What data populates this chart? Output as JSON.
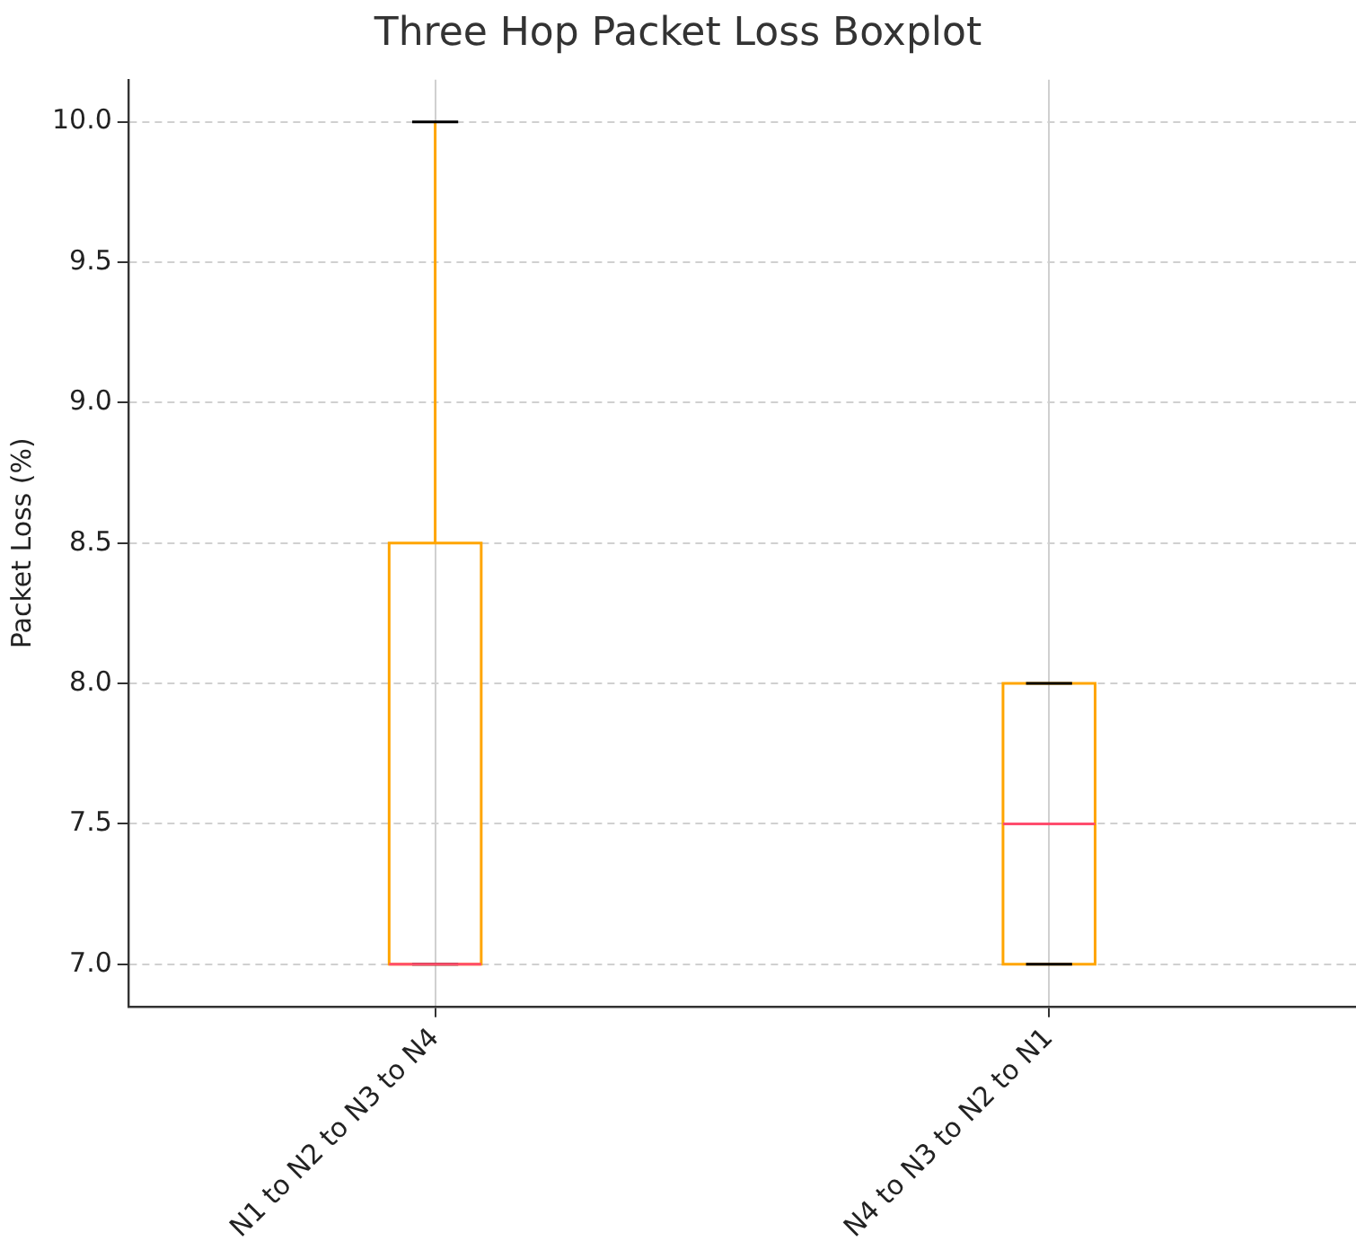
{
  "chart_data": {
    "type": "box",
    "title": "Three Hop Packet Loss Boxplot",
    "ylabel": "Packet Loss (%)",
    "categories": [
      "N1 to N2 to N3 to N4",
      "N4 to N3 to N2 to N1"
    ],
    "series": [
      {
        "color": "#ffa500",
        "boxes": [
          {
            "low": 7.0,
            "q1": 7.0,
            "median": 7.0,
            "q3": 8.5,
            "high": 10.0
          },
          {
            "low": 7.0,
            "q1": 7.0,
            "median": 7.5,
            "q3": 8.0,
            "high": 8.0
          }
        ]
      }
    ],
    "ylim": [
      6.85,
      10.15
    ],
    "yticks": [
      {
        "value": 7,
        "label": "7.0"
      },
      {
        "value": 7.5,
        "label": "7.5"
      },
      {
        "value": 8,
        "label": "8.0"
      },
      {
        "value": 8.5,
        "label": "8.5"
      },
      {
        "value": 9,
        "label": "9.0"
      },
      {
        "value": 9.5,
        "label": "9.5"
      },
      {
        "value": 10,
        "label": "10.0"
      }
    ],
    "grid": true,
    "legend": false
  }
}
